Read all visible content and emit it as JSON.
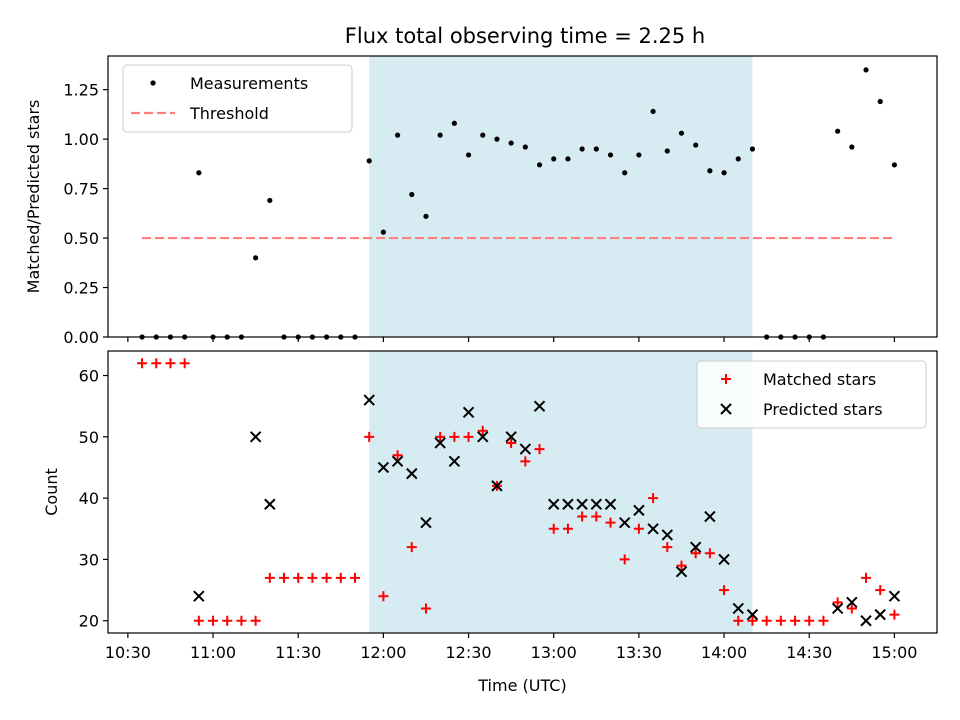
{
  "title": "Flux total observing time = 2.25 h",
  "chart_data": [
    {
      "type": "scatter",
      "panel": "top",
      "ylabel": "Matched/Predicted stars",
      "xlabel": "",
      "xlim": [
        "10:23",
        "15:15"
      ],
      "ylim": [
        0,
        1.42
      ],
      "yticks": [
        0,
        0.25,
        0.5,
        0.75,
        1.0,
        1.25
      ],
      "ytick_labels": [
        "0.00",
        "0.25",
        "0.50",
        "0.75",
        "1.00",
        "1.25"
      ],
      "legend": {
        "placement": "top-left",
        "entries": [
          "Measurements",
          "Threshold"
        ]
      },
      "shaded_interval": [
        "11:55",
        "14:10"
      ],
      "threshold": {
        "name": "Threshold",
        "value": 0.5,
        "x_range": [
          "10:35",
          "15:00"
        ],
        "color": "#ff7f7f",
        "style": "dashed"
      },
      "series": [
        {
          "name": "Measurements",
          "color": "#000000",
          "marker": "dot",
          "x": [
            "10:35",
            "10:40",
            "10:45",
            "10:50",
            "10:55",
            "11:00",
            "11:05",
            "11:10",
            "11:15",
            "11:20",
            "11:25",
            "11:30",
            "11:35",
            "11:40",
            "11:45",
            "11:50",
            "11:55",
            "12:00",
            "12:05",
            "12:10",
            "12:15",
            "12:20",
            "12:25",
            "12:30",
            "12:35",
            "12:40",
            "12:45",
            "12:50",
            "12:55",
            "13:00",
            "13:05",
            "13:10",
            "13:15",
            "13:20",
            "13:25",
            "13:30",
            "13:35",
            "13:40",
            "13:45",
            "13:50",
            "13:55",
            "14:00",
            "14:05",
            "14:10",
            "14:15",
            "14:20",
            "14:25",
            "14:30",
            "14:35",
            "14:40",
            "14:45",
            "14:50",
            "14:55",
            "15:00"
          ],
          "y": [
            0,
            0,
            0,
            0,
            0.83,
            0,
            0,
            0,
            0.4,
            0.69,
            0,
            0,
            0,
            0,
            0,
            0,
            0.89,
            0.53,
            1.02,
            0.72,
            0.61,
            1.02,
            1.08,
            0.92,
            1.02,
            1.0,
            0.98,
            0.96,
            0.87,
            0.9,
            0.9,
            0.95,
            0.95,
            0.92,
            0.83,
            0.92,
            1.14,
            0.94,
            1.03,
            0.97,
            0.84,
            0.83,
            0.9,
            0.95,
            0,
            0,
            0,
            0,
            0,
            1.04,
            0.96,
            1.35,
            1.19,
            0.87
          ]
        }
      ]
    },
    {
      "type": "scatter",
      "panel": "bottom",
      "ylabel": "Count",
      "xlabel": "Time (UTC)",
      "xlim": [
        "10:23",
        "15:15"
      ],
      "ylim": [
        18,
        64
      ],
      "yticks": [
        20,
        30,
        40,
        50,
        60
      ],
      "ytick_labels": [
        "20",
        "30",
        "40",
        "50",
        "60"
      ],
      "xticks": [
        "10:30",
        "11:00",
        "11:30",
        "12:00",
        "12:30",
        "13:00",
        "13:30",
        "14:00",
        "14:30",
        "15:00"
      ],
      "legend": {
        "placement": "top-right",
        "entries": [
          "Matched stars",
          "Predicted stars"
        ]
      },
      "shaded_interval": [
        "11:55",
        "14:10"
      ],
      "series": [
        {
          "name": "Matched stars",
          "color": "#ff0000",
          "marker": "plus",
          "x": [
            "10:35",
            "10:40",
            "10:45",
            "10:50",
            "10:55",
            "11:00",
            "11:05",
            "11:10",
            "11:15",
            "11:20",
            "11:25",
            "11:30",
            "11:35",
            "11:40",
            "11:45",
            "11:50",
            "11:55",
            "12:00",
            "12:05",
            "12:10",
            "12:15",
            "12:20",
            "12:25",
            "12:30",
            "12:35",
            "12:40",
            "12:45",
            "12:50",
            "12:55",
            "13:00",
            "13:05",
            "13:10",
            "13:15",
            "13:20",
            "13:25",
            "13:30",
            "13:35",
            "13:40",
            "13:45",
            "13:50",
            "13:55",
            "14:00",
            "14:05",
            "14:10",
            "14:15",
            "14:20",
            "14:25",
            "14:30",
            "14:35",
            "14:40",
            "14:45",
            "14:50",
            "14:55",
            "15:00"
          ],
          "y": [
            62,
            62,
            62,
            62,
            20,
            20,
            20,
            20,
            20,
            27,
            27,
            27,
            27,
            27,
            27,
            27,
            50,
            24,
            47,
            32,
            22,
            50,
            50,
            50,
            51,
            42,
            49,
            46,
            48,
            35,
            35,
            37,
            37,
            36,
            30,
            35,
            40,
            32,
            29,
            31,
            31,
            25,
            20,
            20,
            20,
            20,
            20,
            20,
            20,
            23,
            22,
            27,
            25,
            21
          ]
        },
        {
          "name": "Predicted stars",
          "color": "#000000",
          "marker": "x",
          "x": [
            "10:55",
            "11:15",
            "11:20",
            "11:55",
            "12:00",
            "12:05",
            "12:10",
            "12:15",
            "12:20",
            "12:25",
            "12:30",
            "12:35",
            "12:40",
            "12:45",
            "12:50",
            "12:55",
            "13:00",
            "13:05",
            "13:10",
            "13:15",
            "13:20",
            "13:25",
            "13:30",
            "13:35",
            "13:40",
            "13:45",
            "13:50",
            "13:55",
            "14:00",
            "14:05",
            "14:10",
            "14:40",
            "14:45",
            "14:50",
            "14:55",
            "15:00"
          ],
          "y": [
            24,
            50,
            39,
            56,
            45,
            46,
            44,
            36,
            49,
            46,
            54,
            50,
            42,
            50,
            48,
            55,
            39,
            39,
            39,
            39,
            39,
            36,
            38,
            35,
            34,
            28,
            32,
            37,
            30,
            22,
            21,
            22,
            23,
            20,
            21,
            24
          ]
        }
      ]
    }
  ]
}
